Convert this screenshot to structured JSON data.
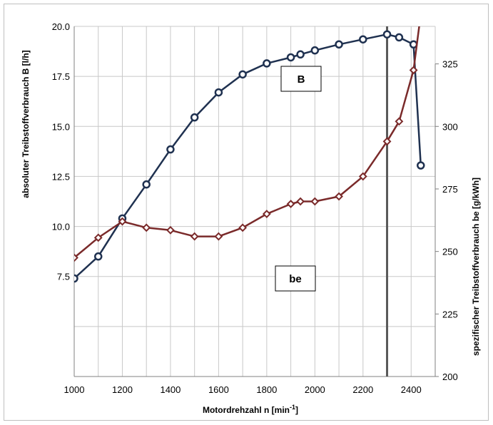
{
  "chart_data": {
    "type": "line",
    "xlabel": "Motordrehzahl  n [min",
    "xlabel_sup": "-1",
    "xlabel_end": "]",
    "ylabel_left": "absoluter Treibstoffverbrauch  B [l/h]",
    "ylabel_right": "spezifischer Treibstoffverbrauch  be [g/kWh]",
    "xlim": [
      1000,
      2500
    ],
    "ylim_left": [
      2.5,
      20.0
    ],
    "ylim_right": [
      200,
      340
    ],
    "x_ticks": [
      "1000",
      "1200",
      "1400",
      "1600",
      "1800",
      "2000",
      "2200",
      "2400"
    ],
    "y_left_ticks": [
      "7.5",
      "10.0",
      "12.5",
      "15.0",
      "17.5",
      "20.0"
    ],
    "y_right_ticks": [
      "200",
      "225",
      "250",
      "275",
      "300",
      "325"
    ],
    "grid": true,
    "vertical_marker_x": 2300,
    "series": [
      {
        "name": "B",
        "axis": "left",
        "color": "#1f3150",
        "marker": "circle",
        "x": [
          1000,
          1100,
          1200,
          1300,
          1400,
          1500,
          1600,
          1700,
          1800,
          1900,
          1940,
          2000,
          2100,
          2200,
          2300,
          2350,
          2410,
          2440
        ],
        "y": [
          7.4,
          8.5,
          10.4,
          12.1,
          13.85,
          15.45,
          16.7,
          17.6,
          18.15,
          18.45,
          18.6,
          18.8,
          19.1,
          19.35,
          19.6,
          19.45,
          19.1,
          13.05
        ]
      },
      {
        "name": "be",
        "axis": "right",
        "color": "#7a2a2a",
        "marker": "diamond",
        "x": [
          1000,
          1100,
          1200,
          1300,
          1400,
          1500,
          1600,
          1700,
          1800,
          1900,
          1940,
          2000,
          2100,
          2200,
          2300,
          2350,
          2410,
          2440
        ],
        "y": [
          247.5,
          255.5,
          262,
          259.5,
          258.5,
          256,
          256,
          259.5,
          265,
          269,
          270,
          270,
          272,
          280,
          294,
          302,
          322.5,
          345
        ]
      }
    ]
  }
}
